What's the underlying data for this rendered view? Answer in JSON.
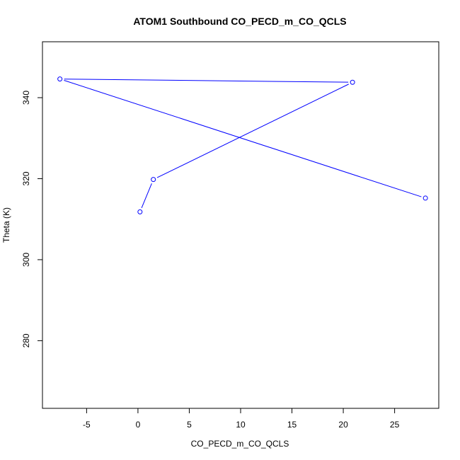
{
  "chart_data": {
    "type": "line",
    "title": "ATOM1 Southbound CO_PECD_m_CO_QCLS",
    "xlabel": "CO_PECD_m_CO_QCLS",
    "ylabel": "Theta (K)",
    "x_ticks": [
      -5,
      0,
      5,
      10,
      15,
      20,
      25
    ],
    "y_ticks": [
      280,
      300,
      320,
      340
    ],
    "xlim": [
      -9.3,
      29.3
    ],
    "ylim": [
      263.3,
      353.8
    ],
    "grid": false,
    "legend": "none",
    "series": [
      {
        "color": "#0000ff",
        "points": [
          {
            "x": 0.2,
            "y": 311.8
          },
          {
            "x": 1.5,
            "y": 319.8
          },
          {
            "x": 20.9,
            "y": 343.8
          },
          {
            "x": -7.6,
            "y": 344.6
          },
          {
            "x": 28.0,
            "y": 315.2
          }
        ]
      }
    ]
  }
}
